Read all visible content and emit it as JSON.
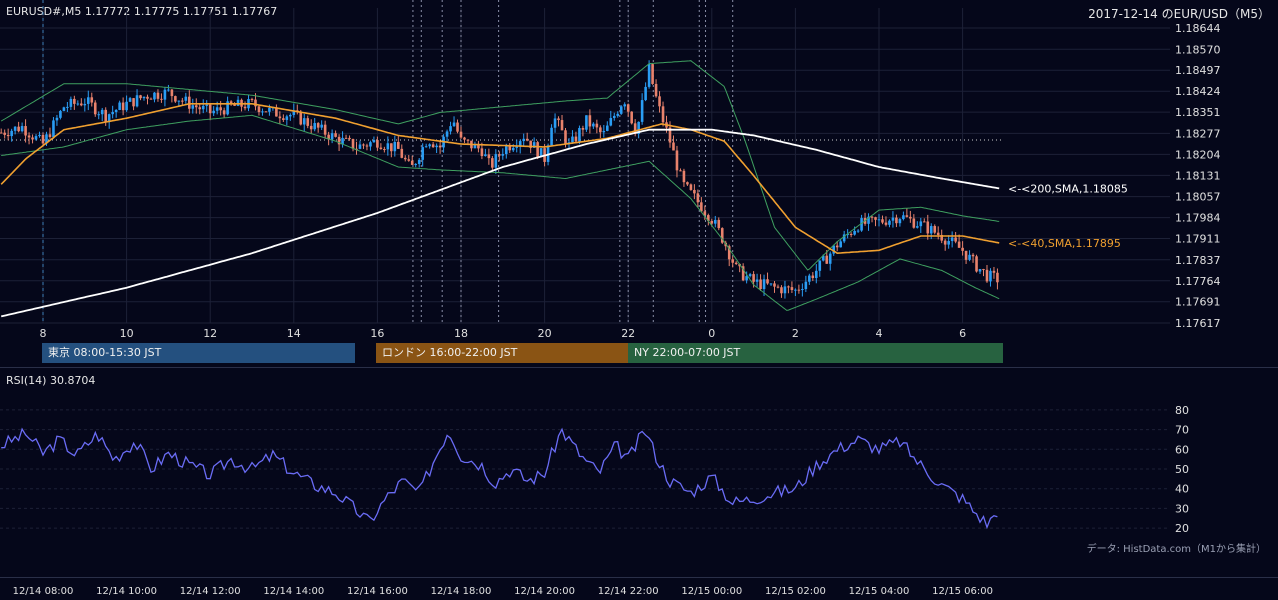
{
  "header": {
    "symbol_info": "EURUSD#,M5 1.17772 1.17775 1.17751 1.17767",
    "date_title": "2017-12-14 のEUR/USD（M5）"
  },
  "colors": {
    "background": "#05071a",
    "grid": "#1d2137",
    "bull_candle": "#2a9df4",
    "bear_candle": "#e8826c",
    "sma200": "#ffffff",
    "sma40": "#f0a030",
    "bollinger": "#3fa060",
    "rsi_line": "#6a6cf5",
    "session_tokyo": "#24507f",
    "session_london": "#8a5414",
    "session_ny": "#276240"
  },
  "price_axis": {
    "ticks": [
      "1.18644",
      "1.18570",
      "1.18497",
      "1.18424",
      "1.18351",
      "1.18277",
      "1.18204",
      "1.18131",
      "1.18057",
      "1.17984",
      "1.17911",
      "1.17837",
      "1.17764",
      "1.17691",
      "1.17617"
    ]
  },
  "hour_axis": {
    "ticks": [
      "8",
      "10",
      "12",
      "14",
      "16",
      "18",
      "20",
      "22",
      "0",
      "2",
      "4",
      "6"
    ]
  },
  "sessions": {
    "tokyo": "東京 08:00-15:30 JST",
    "london": "ロンドン 16:00-22:00 JST",
    "ny": "NY 22:00-07:00 JST"
  },
  "indicator_labels": {
    "sma200": "<-<200,SMA,1.18085",
    "sma40": "<-<40,SMA,1.17895"
  },
  "rsi": {
    "title": "RSI(14) 30.8704",
    "ticks": [
      "80",
      "70",
      "60",
      "50",
      "40",
      "30",
      "20"
    ],
    "ylim": [
      16,
      84
    ]
  },
  "data_source": "データ: HistData.com（M1から集計）",
  "time_axis": {
    "labels": [
      "12/14 08:00",
      "12/14 10:00",
      "12/14 12:00",
      "12/14 14:00",
      "12/14 16:00",
      "12/14 18:00",
      "12/14 20:00",
      "12/14 22:00",
      "12/15 00:00",
      "12/15 02:00",
      "12/15 04:00",
      "12/15 06:00"
    ]
  },
  "chart_data": {
    "type": "candlestick",
    "timeframe": "M5",
    "x_range_hours": [
      7.0,
      30.9
    ],
    "ylim": [
      1.17617,
      1.18644
    ],
    "price_anchors": [
      [
        7.0,
        1.1828
      ],
      [
        7.5,
        1.183
      ],
      [
        8.0,
        1.1824
      ],
      [
        8.5,
        1.1837
      ],
      [
        9.0,
        1.1839
      ],
      [
        9.5,
        1.1834
      ],
      [
        10.0,
        1.1838
      ],
      [
        10.5,
        1.1841
      ],
      [
        11.0,
        1.1842
      ],
      [
        11.5,
        1.1838
      ],
      [
        12.0,
        1.1835
      ],
      [
        12.5,
        1.1837
      ],
      [
        13.0,
        1.1838
      ],
      [
        13.5,
        1.1835
      ],
      [
        14.0,
        1.1834
      ],
      [
        14.5,
        1.183
      ],
      [
        15.0,
        1.1826
      ],
      [
        15.5,
        1.1823
      ],
      [
        16.0,
        1.1825
      ],
      [
        16.5,
        1.1822
      ],
      [
        16.8,
        1.1815
      ],
      [
        17.2,
        1.1826
      ],
      [
        17.5,
        1.1823
      ],
      [
        17.8,
        1.1833
      ],
      [
        18.0,
        1.1825
      ],
      [
        18.5,
        1.1822
      ],
      [
        18.7,
        1.1816
      ],
      [
        19.0,
        1.1822
      ],
      [
        19.5,
        1.1827
      ],
      [
        20.0,
        1.1819
      ],
      [
        20.2,
        1.1834
      ],
      [
        20.6,
        1.1823
      ],
      [
        21.0,
        1.1832
      ],
      [
        21.4,
        1.1827
      ],
      [
        21.9,
        1.184
      ],
      [
        22.2,
        1.1828
      ],
      [
        22.5,
        1.185
      ],
      [
        22.7,
        1.1838
      ],
      [
        23.0,
        1.1825
      ],
      [
        23.3,
        1.181
      ],
      [
        23.6,
        1.1805
      ],
      [
        24.0,
        1.1798
      ],
      [
        24.3,
        1.179
      ],
      [
        24.6,
        1.178
      ],
      [
        25.0,
        1.1776
      ],
      [
        25.5,
        1.1774
      ],
      [
        26.0,
        1.1773
      ],
      [
        26.5,
        1.178
      ],
      [
        27.0,
        1.1789
      ],
      [
        27.5,
        1.1796
      ],
      [
        28.0,
        1.1797
      ],
      [
        28.5,
        1.1799
      ],
      [
        29.0,
        1.1796
      ],
      [
        29.5,
        1.1792
      ],
      [
        30.0,
        1.1787
      ],
      [
        30.3,
        1.1782
      ],
      [
        30.6,
        1.1778
      ],
      [
        30.9,
        1.17767
      ]
    ],
    "sma200_anchors": [
      [
        7.0,
        1.1764
      ],
      [
        10.0,
        1.1774
      ],
      [
        13.0,
        1.1786
      ],
      [
        16.0,
        1.18
      ],
      [
        19.0,
        1.1816
      ],
      [
        21.0,
        1.1824
      ],
      [
        22.5,
        1.1829
      ],
      [
        24.0,
        1.1829
      ],
      [
        25.0,
        1.1827
      ],
      [
        26.5,
        1.1822
      ],
      [
        28.0,
        1.1816
      ],
      [
        29.5,
        1.1812
      ],
      [
        30.9,
        1.18085
      ]
    ],
    "sma40_anchors": [
      [
        7.0,
        1.181
      ],
      [
        7.6,
        1.1819
      ],
      [
        8.5,
        1.1829
      ],
      [
        10.0,
        1.1833
      ],
      [
        11.5,
        1.1838
      ],
      [
        13.0,
        1.1838
      ],
      [
        15.0,
        1.1833
      ],
      [
        16.5,
        1.1827
      ],
      [
        18.0,
        1.1824
      ],
      [
        20.0,
        1.1823
      ],
      [
        21.5,
        1.1826
      ],
      [
        22.8,
        1.1831
      ],
      [
        23.5,
        1.1829
      ],
      [
        24.3,
        1.1825
      ],
      [
        25.0,
        1.1813
      ],
      [
        26.0,
        1.1795
      ],
      [
        27.0,
        1.1786
      ],
      [
        28.0,
        1.1787
      ],
      [
        29.0,
        1.1792
      ],
      [
        30.0,
        1.1792
      ],
      [
        30.9,
        1.17895
      ]
    ],
    "bollinger": {
      "upper": [
        [
          7.0,
          1.1832
        ],
        [
          8.5,
          1.1845
        ],
        [
          10.0,
          1.1845
        ],
        [
          11.5,
          1.1843
        ],
        [
          13.0,
          1.1841
        ],
        [
          15.0,
          1.1836
        ],
        [
          16.5,
          1.1831
        ],
        [
          17.5,
          1.1835
        ],
        [
          19.0,
          1.1837
        ],
        [
          20.5,
          1.1839
        ],
        [
          21.5,
          1.184
        ],
        [
          22.5,
          1.1852
        ],
        [
          23.5,
          1.1853
        ],
        [
          24.3,
          1.1844
        ],
        [
          24.8,
          1.1825
        ],
        [
          25.5,
          1.1795
        ],
        [
          26.3,
          1.178
        ],
        [
          27.0,
          1.179
        ],
        [
          28.0,
          1.1801
        ],
        [
          29.0,
          1.1802
        ],
        [
          30.0,
          1.1799
        ],
        [
          30.9,
          1.1797
        ]
      ],
      "lower": [
        [
          7.0,
          1.182
        ],
        [
          8.5,
          1.1823
        ],
        [
          10.0,
          1.1829
        ],
        [
          11.5,
          1.1832
        ],
        [
          13.0,
          1.1834
        ],
        [
          15.0,
          1.1825
        ],
        [
          16.5,
          1.1816
        ],
        [
          17.5,
          1.1815
        ],
        [
          19.0,
          1.1814
        ],
        [
          20.5,
          1.1812
        ],
        [
          21.5,
          1.1815
        ],
        [
          22.5,
          1.1818
        ],
        [
          23.5,
          1.1805
        ],
        [
          24.3,
          1.179
        ],
        [
          25.0,
          1.1775
        ],
        [
          25.8,
          1.1766
        ],
        [
          26.5,
          1.177
        ],
        [
          27.5,
          1.1776
        ],
        [
          28.5,
          1.1784
        ],
        [
          29.5,
          1.178
        ],
        [
          30.3,
          1.1774
        ],
        [
          30.9,
          1.177
        ]
      ]
    },
    "rsi_anchors": [
      [
        7.0,
        62
      ],
      [
        7.6,
        68
      ],
      [
        8.0,
        58
      ],
      [
        8.4,
        65
      ],
      [
        8.8,
        57
      ],
      [
        9.3,
        68
      ],
      [
        9.7,
        55
      ],
      [
        10.2,
        64
      ],
      [
        10.6,
        50
      ],
      [
        11.0,
        58
      ],
      [
        11.5,
        52
      ],
      [
        12.0,
        47
      ],
      [
        12.5,
        55
      ],
      [
        13.0,
        50
      ],
      [
        13.5,
        57
      ],
      [
        14.0,
        48
      ],
      [
        14.5,
        42
      ],
      [
        15.0,
        38
      ],
      [
        15.5,
        29
      ],
      [
        15.8,
        23
      ],
      [
        16.2,
        35
      ],
      [
        16.6,
        44
      ],
      [
        17.0,
        38
      ],
      [
        17.3,
        52
      ],
      [
        17.7,
        70
      ],
      [
        18.0,
        57
      ],
      [
        18.5,
        52
      ],
      [
        18.8,
        43
      ],
      [
        19.2,
        50
      ],
      [
        19.6,
        44
      ],
      [
        20.0,
        48
      ],
      [
        20.4,
        70
      ],
      [
        20.9,
        56
      ],
      [
        21.3,
        48
      ],
      [
        21.7,
        62
      ],
      [
        22.0,
        55
      ],
      [
        22.4,
        70
      ],
      [
        22.7,
        55
      ],
      [
        23.0,
        44
      ],
      [
        23.5,
        38
      ],
      [
        24.0,
        46
      ],
      [
        24.5,
        33
      ],
      [
        25.0,
        35
      ],
      [
        25.5,
        38
      ],
      [
        26.0,
        40
      ],
      [
        26.5,
        52
      ],
      [
        27.0,
        60
      ],
      [
        27.5,
        65
      ],
      [
        28.0,
        60
      ],
      [
        28.5,
        64
      ],
      [
        29.0,
        52
      ],
      [
        29.5,
        42
      ],
      [
        30.0,
        35
      ],
      [
        30.3,
        28
      ],
      [
        30.6,
        22
      ],
      [
        30.9,
        31
      ]
    ]
  }
}
